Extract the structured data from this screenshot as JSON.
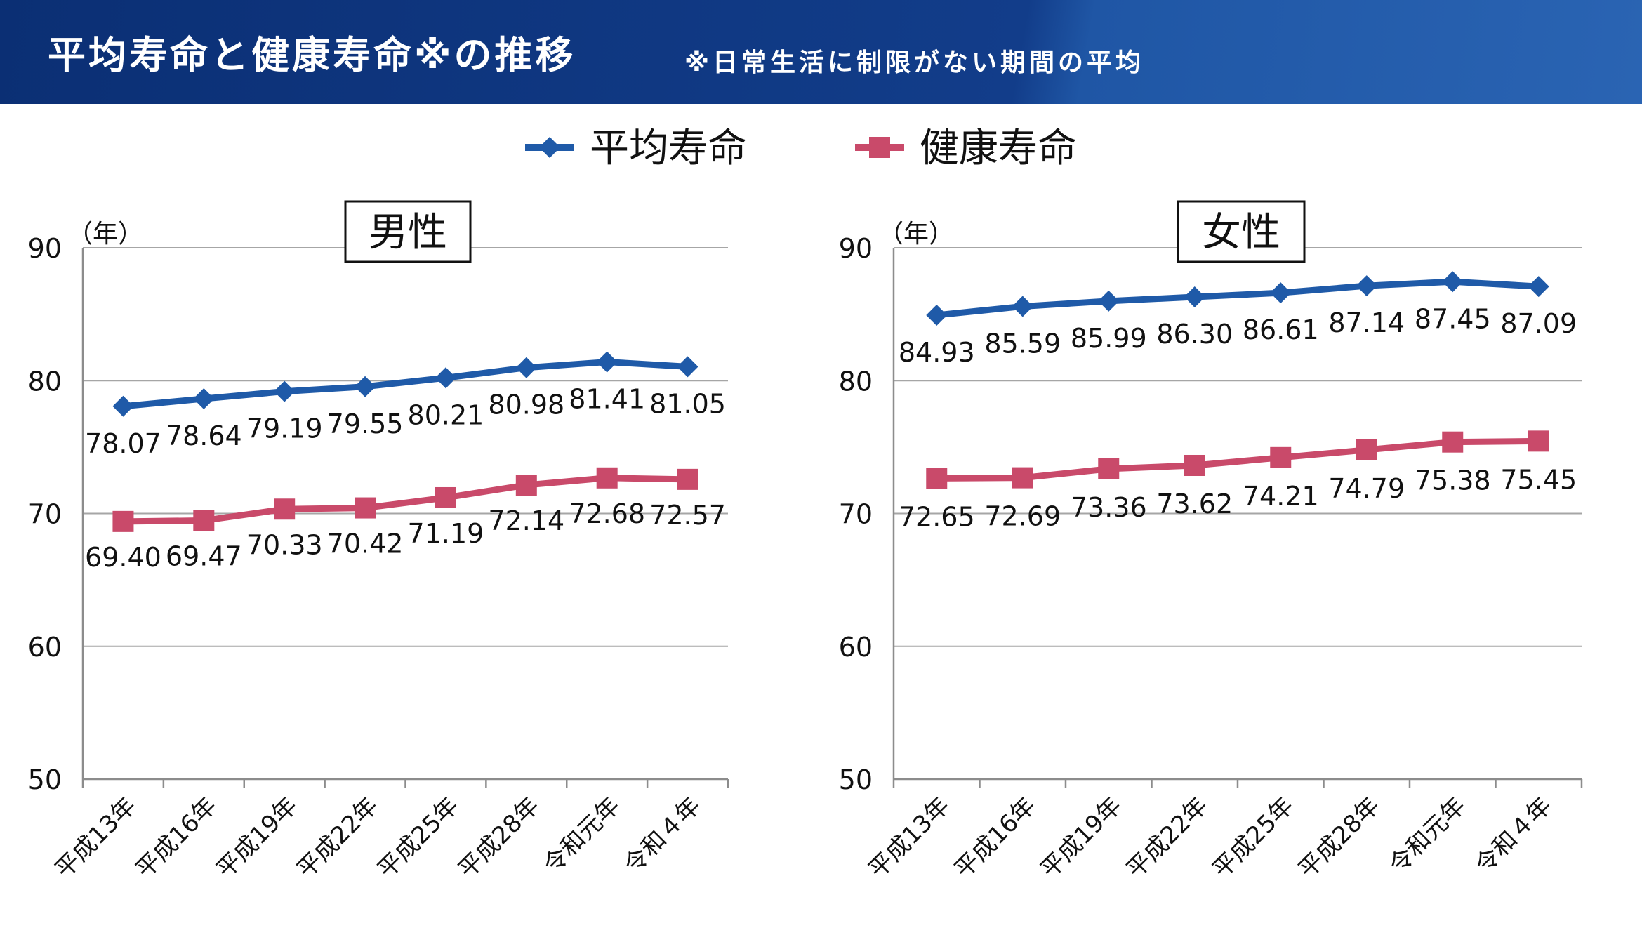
{
  "header": {
    "title": "平均寿命と健康寿命※の推移",
    "note": "※日常生活に制限がない期間の平均"
  },
  "colors": {
    "header_bg": "#123d8a",
    "avg_series": "#1f5aa8",
    "healthy_series": "#c94a6a"
  },
  "legend": [
    {
      "label": "平均寿命",
      "marker": "diamond",
      "color": "#1f5aa8"
    },
    {
      "label": "健康寿命",
      "marker": "square",
      "color": "#c94a6a"
    }
  ],
  "chart_data": [
    {
      "type": "line",
      "title": "男性",
      "ylabel": "（年）",
      "ylim": [
        50,
        90
      ],
      "yticks": [
        50,
        60,
        70,
        80,
        90
      ],
      "grid": true,
      "categories": [
        "平成13年",
        "平成16年",
        "平成19年",
        "平成22年",
        "平成25年",
        "平成28年",
        "令和元年",
        "令和４年"
      ],
      "series": [
        {
          "name": "平均寿命",
          "marker": "diamond",
          "values": [
            78.07,
            78.64,
            79.19,
            79.55,
            80.21,
            80.98,
            81.41,
            81.05
          ]
        },
        {
          "name": "健康寿命",
          "marker": "square",
          "values": [
            69.4,
            69.47,
            70.33,
            70.42,
            71.19,
            72.14,
            72.68,
            72.57
          ]
        }
      ],
      "value_labels": [
        [
          "78.07",
          "78.64",
          "79.19",
          "79.55",
          "80.21",
          "80.98",
          "81.41",
          "81.05"
        ],
        [
          "69.40",
          "69.47",
          "70.33",
          "70.42",
          "71.19",
          "72.14",
          "72.68",
          "72.57"
        ]
      ]
    },
    {
      "type": "line",
      "title": "女性",
      "ylabel": "（年）",
      "ylim": [
        50,
        90
      ],
      "yticks": [
        50,
        60,
        70,
        80,
        90
      ],
      "grid": true,
      "categories": [
        "平成13年",
        "平成16年",
        "平成19年",
        "平成22年",
        "平成25年",
        "平成28年",
        "令和元年",
        "令和４年"
      ],
      "series": [
        {
          "name": "平均寿命",
          "marker": "diamond",
          "values": [
            84.93,
            85.59,
            85.99,
            86.3,
            86.61,
            87.14,
            87.45,
            87.09
          ]
        },
        {
          "name": "健康寿命",
          "marker": "square",
          "values": [
            72.65,
            72.69,
            73.36,
            73.62,
            74.21,
            74.79,
            75.38,
            75.45
          ]
        }
      ],
      "value_labels": [
        [
          "84.93",
          "85.59",
          "85.99",
          "86.30",
          "86.61",
          "87.14",
          "87.45",
          "87.09"
        ],
        [
          "72.65",
          "72.69",
          "73.36",
          "73.62",
          "74.21",
          "74.79",
          "75.38",
          "75.45"
        ]
      ]
    }
  ]
}
